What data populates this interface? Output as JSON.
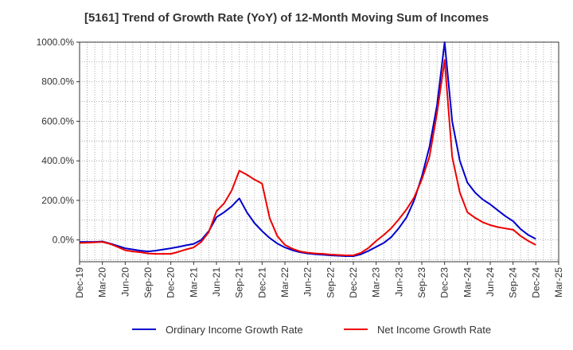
{
  "chart_data": {
    "type": "line",
    "title": "[5161]  Trend of Growth Rate (YoY) of 12-Month Moving Sum of Incomes",
    "xlabel": "",
    "ylabel": "",
    "ylim": [
      -110,
      1000
    ],
    "y_ticks": [
      0,
      200,
      400,
      600,
      800,
      1000
    ],
    "y_tick_labels": [
      "0.0%",
      "200.0%",
      "400.0%",
      "600.0%",
      "800.0%",
      "1000.0%"
    ],
    "x_tick_labels": [
      "Dec-19",
      "Mar-20",
      "Jun-20",
      "Sep-20",
      "Dec-20",
      "Mar-21",
      "Jun-21",
      "Sep-21",
      "Dec-21",
      "Mar-22",
      "Jun-22",
      "Sep-22",
      "Dec-22",
      "Mar-23",
      "Jun-23",
      "Sep-23",
      "Dec-23",
      "Mar-24",
      "Jun-24",
      "Sep-24",
      "Dec-24",
      "Mar-25"
    ],
    "grid": true,
    "legend_position": "bottom",
    "months": [
      "Dec-19",
      "Jan-20",
      "Feb-20",
      "Mar-20",
      "Apr-20",
      "May-20",
      "Jun-20",
      "Jul-20",
      "Aug-20",
      "Sep-20",
      "Oct-20",
      "Nov-20",
      "Dec-20",
      "Jan-21",
      "Feb-21",
      "Mar-21",
      "Apr-21",
      "May-21",
      "Jun-21",
      "Jul-21",
      "Aug-21",
      "Sep-21",
      "Oct-21",
      "Nov-21",
      "Dec-21",
      "Jan-22",
      "Feb-22",
      "Mar-22",
      "Apr-22",
      "May-22",
      "Jun-22",
      "Jul-22",
      "Aug-22",
      "Sep-22",
      "Oct-22",
      "Nov-22",
      "Dec-22",
      "Jan-23",
      "Feb-23",
      "Mar-23",
      "Apr-23",
      "May-23",
      "Jun-23",
      "Jul-23",
      "Aug-23",
      "Sep-23",
      "Oct-23",
      "Nov-23",
      "Dec-23",
      "Jan-24",
      "Feb-24",
      "Mar-24",
      "Apr-24",
      "May-24",
      "Jun-24",
      "Jul-24",
      "Aug-24",
      "Sep-24",
      "Oct-24",
      "Nov-24",
      "Dec-24"
    ],
    "series": [
      {
        "name": "Ordinary Income Growth Rate",
        "color": "#0000cc",
        "values": [
          -10,
          -10,
          -10,
          -8,
          -18,
          -30,
          -42,
          -48,
          -54,
          -58,
          -54,
          -48,
          -42,
          -35,
          -27,
          -20,
          0,
          45,
          115,
          140,
          170,
          210,
          140,
          85,
          45,
          10,
          -18,
          -38,
          -52,
          -62,
          -68,
          -72,
          -75,
          -78,
          -80,
          -82,
          -82,
          -72,
          -55,
          -35,
          -15,
          15,
          60,
          115,
          200,
          320,
          470,
          680,
          1020,
          600,
          400,
          290,
          240,
          205,
          180,
          150,
          120,
          95,
          55,
          25,
          5
        ]
      },
      {
        "name": "Net Income Growth Rate",
        "color": "#ee0000",
        "values": [
          -15,
          -14,
          -12,
          -10,
          -20,
          -35,
          -52,
          -58,
          -62,
          -68,
          -70,
          -70,
          -70,
          -60,
          -48,
          -38,
          -10,
          40,
          145,
          185,
          250,
          350,
          330,
          305,
          285,
          110,
          20,
          -25,
          -45,
          -58,
          -64,
          -68,
          -70,
          -74,
          -76,
          -78,
          -78,
          -65,
          -40,
          -5,
          25,
          60,
          105,
          155,
          215,
          305,
          420,
          640,
          910,
          420,
          240,
          140,
          112,
          90,
          75,
          65,
          58,
          52,
          20,
          -5,
          -25
        ]
      }
    ]
  }
}
